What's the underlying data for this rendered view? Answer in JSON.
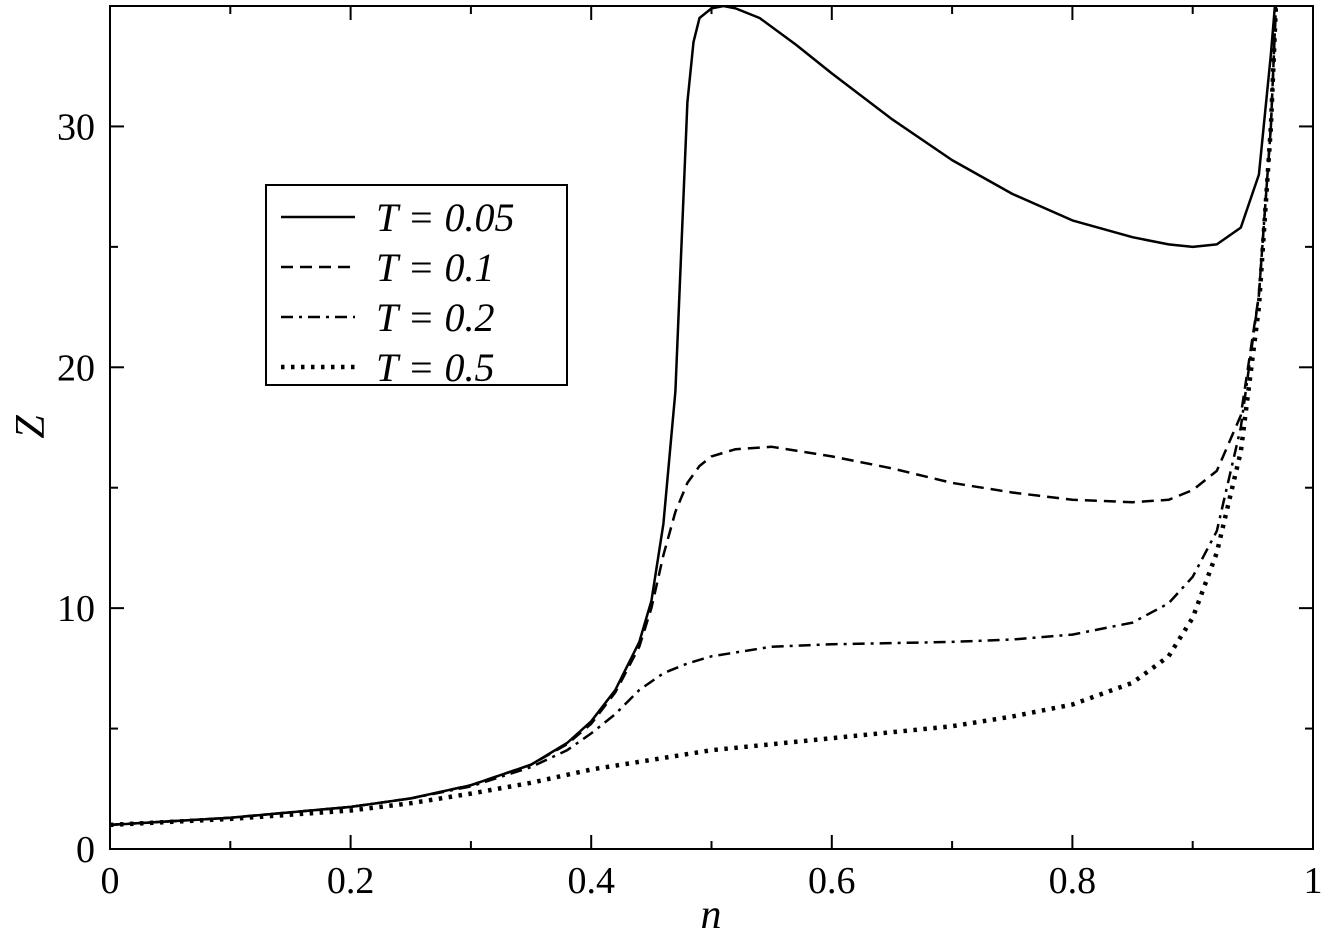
{
  "chart_data": {
    "type": "line",
    "title": "",
    "xlabel": "n",
    "ylabel": "Z",
    "xlim": [
      0,
      1
    ],
    "ylim": [
      0,
      35
    ],
    "x_ticks": [
      0,
      0.2,
      0.4,
      0.6,
      0.8,
      1
    ],
    "x_tick_labels": [
      "0",
      "0.2",
      "0.4",
      "0.6",
      "0.8",
      "1"
    ],
    "y_ticks": [
      0,
      10,
      20,
      30
    ],
    "y_tick_labels": [
      "0",
      "10",
      "20",
      "30"
    ],
    "grid": false,
    "legend_position": "upper-left",
    "series": [
      {
        "name": "T = 0.05",
        "dash": "solid",
        "x": [
          0,
          0.1,
          0.2,
          0.25,
          0.3,
          0.35,
          0.38,
          0.4,
          0.42,
          0.44,
          0.45,
          0.46,
          0.47,
          0.475,
          0.48,
          0.485,
          0.49,
          0.5,
          0.51,
          0.52,
          0.54,
          0.57,
          0.6,
          0.65,
          0.7,
          0.75,
          0.8,
          0.85,
          0.88,
          0.9,
          0.92,
          0.94,
          0.955,
          0.965,
          0.97
        ],
        "values": [
          1.0,
          1.3,
          1.75,
          2.1,
          2.65,
          3.5,
          4.4,
          5.3,
          6.6,
          8.6,
          10.3,
          13.5,
          19.0,
          25.0,
          31.0,
          33.5,
          34.5,
          34.9,
          35.0,
          34.9,
          34.5,
          33.4,
          32.2,
          30.3,
          28.6,
          27.2,
          26.1,
          25.4,
          25.1,
          25.0,
          25.1,
          25.8,
          28.0,
          33.0,
          36.0
        ]
      },
      {
        "name": "T = 0.1",
        "dash": "dashed",
        "x": [
          0,
          0.1,
          0.2,
          0.25,
          0.3,
          0.35,
          0.38,
          0.4,
          0.42,
          0.44,
          0.45,
          0.46,
          0.47,
          0.48,
          0.49,
          0.5,
          0.52,
          0.55,
          0.6,
          0.65,
          0.7,
          0.75,
          0.8,
          0.85,
          0.88,
          0.9,
          0.92,
          0.94,
          0.955,
          0.965,
          0.97
        ],
        "values": [
          1.0,
          1.3,
          1.75,
          2.1,
          2.65,
          3.5,
          4.35,
          5.2,
          6.5,
          8.4,
          10.0,
          12.2,
          14.0,
          15.2,
          15.9,
          16.3,
          16.6,
          16.7,
          16.3,
          15.8,
          15.2,
          14.8,
          14.5,
          14.4,
          14.5,
          14.9,
          15.7,
          18.0,
          23.0,
          30.0,
          36.0
        ]
      },
      {
        "name": "T = 0.2",
        "dash": "dashdot",
        "x": [
          0,
          0.1,
          0.2,
          0.25,
          0.3,
          0.35,
          0.38,
          0.4,
          0.42,
          0.44,
          0.46,
          0.48,
          0.5,
          0.55,
          0.6,
          0.65,
          0.7,
          0.75,
          0.8,
          0.85,
          0.88,
          0.9,
          0.92,
          0.94,
          0.955,
          0.965,
          0.97
        ],
        "values": [
          1.0,
          1.3,
          1.75,
          2.1,
          2.6,
          3.4,
          4.1,
          4.8,
          5.6,
          6.6,
          7.3,
          7.7,
          8.0,
          8.4,
          8.5,
          8.55,
          8.6,
          8.7,
          8.9,
          9.4,
          10.2,
          11.3,
          13.2,
          17.5,
          23.0,
          30.0,
          36.0
        ]
      },
      {
        "name": "T = 0.5",
        "dash": "dotted",
        "x": [
          0,
          0.1,
          0.2,
          0.25,
          0.3,
          0.35,
          0.4,
          0.45,
          0.5,
          0.55,
          0.6,
          0.65,
          0.7,
          0.75,
          0.8,
          0.85,
          0.88,
          0.9,
          0.92,
          0.94,
          0.955,
          0.965,
          0.97
        ],
        "values": [
          1.0,
          1.25,
          1.6,
          1.9,
          2.3,
          2.75,
          3.3,
          3.7,
          4.1,
          4.35,
          4.6,
          4.85,
          5.1,
          5.5,
          6.0,
          6.9,
          8.0,
          9.6,
          12.3,
          16.5,
          22.5,
          30.0,
          36.0
        ]
      }
    ]
  }
}
